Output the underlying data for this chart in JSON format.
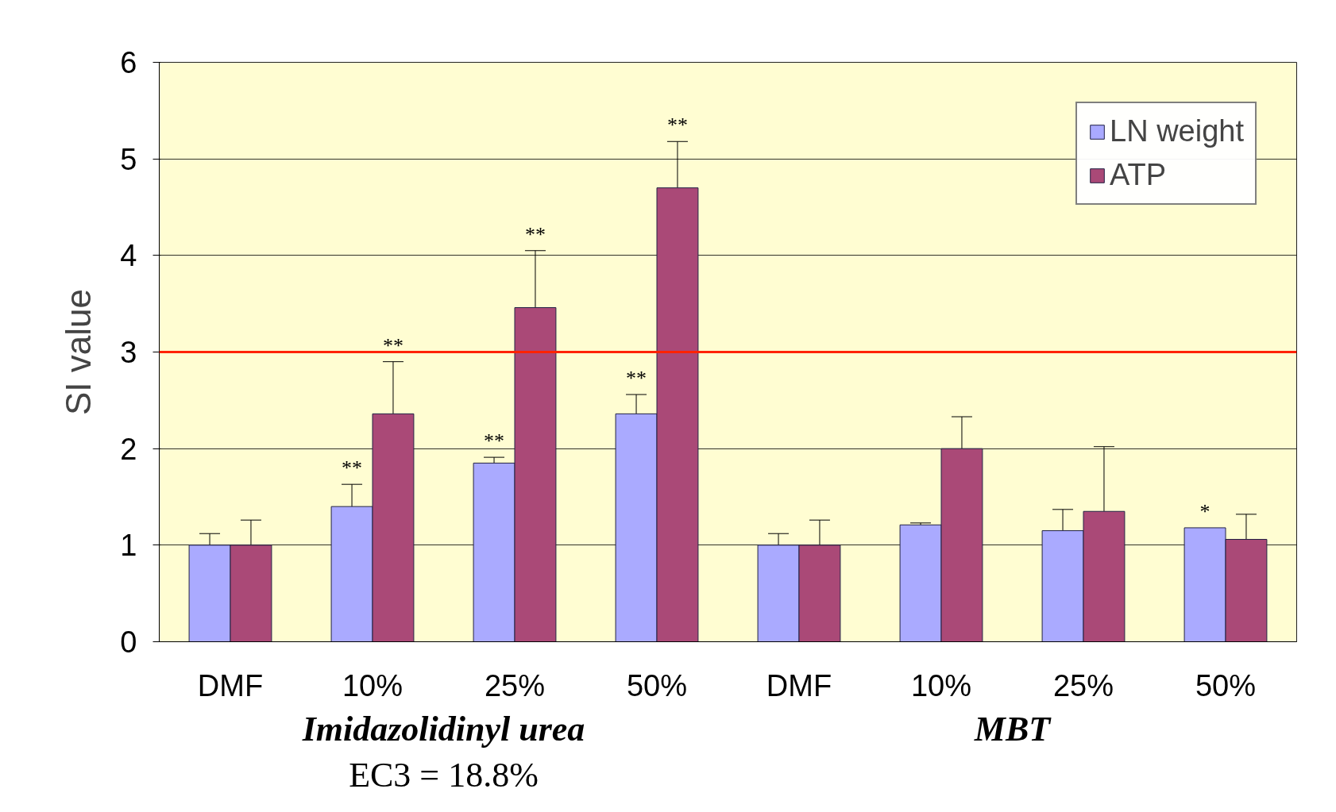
{
  "chart_data": {
    "type": "bar",
    "ylabel": "SI value",
    "categories": [
      "DMF",
      "10%",
      "25%",
      "50%",
      "DMF",
      "10%",
      "25%",
      "50%"
    ],
    "series": [
      {
        "name": "LN weight",
        "color": "#aaaaff",
        "values": [
          1.0,
          1.4,
          1.85,
          2.36,
          1.0,
          1.21,
          1.15,
          1.18
        ],
        "errors": [
          [
            1.0,
            1.12
          ],
          [
            1.4,
            1.63
          ],
          [
            1.85,
            1.91
          ],
          [
            2.36,
            2.56
          ],
          [
            1.0,
            1.12
          ],
          [
            1.21,
            1.23
          ],
          [
            1.15,
            1.37
          ],
          null
        ],
        "value_labels": [
          null,
          "**",
          "**",
          "**",
          null,
          null,
          null,
          "*"
        ]
      },
      {
        "name": "ATP",
        "color": "#aa4977",
        "values": [
          1.0,
          2.36,
          3.46,
          4.7,
          1.0,
          2.0,
          1.35,
          1.06
        ],
        "errors": [
          [
            1.0,
            1.26
          ],
          [
            2.36,
            2.9
          ],
          [
            3.46,
            4.05
          ],
          [
            4.7,
            5.18
          ],
          [
            1.0,
            1.26
          ],
          [
            2.0,
            2.33
          ],
          [
            1.35,
            2.02
          ],
          [
            1.06,
            1.32
          ]
        ],
        "value_labels": [
          null,
          "**",
          "**",
          "**",
          null,
          null,
          null,
          null
        ]
      }
    ],
    "ylim": [
      0,
      6
    ],
    "yticks": [
      0,
      1,
      2,
      3,
      4,
      5,
      6
    ],
    "grid": "y",
    "legend": "top right",
    "ref_lines": [
      {
        "axis": "y",
        "value": 3,
        "color": "#ff2200"
      }
    ],
    "annotations": [
      "Imidazolidinyl urea",
      "MBT",
      "EC3 = 18.8%"
    ]
  }
}
